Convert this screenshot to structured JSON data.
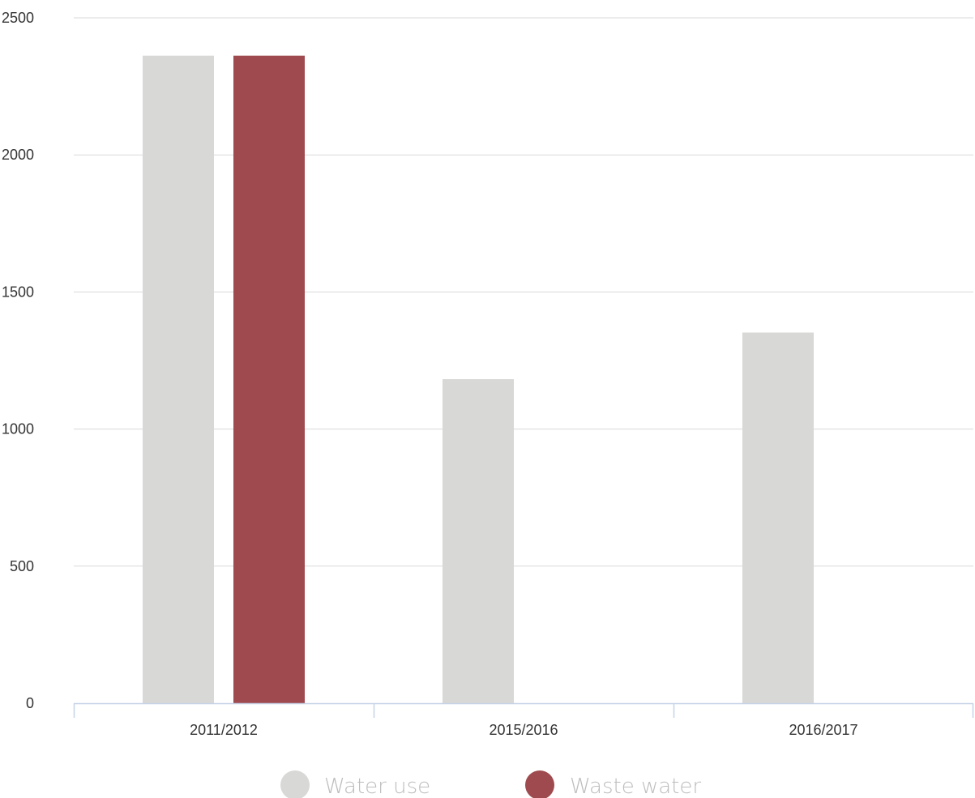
{
  "chart_data": {
    "type": "bar",
    "categories": [
      "2011/2012",
      "2015/2016",
      "2016/2017"
    ],
    "series": [
      {
        "name": "Water use",
        "color": "#d8d8d6",
        "values": [
          2362,
          1182,
          1352
        ]
      },
      {
        "name": "Waste water",
        "color": "#9f4a4f",
        "values": [
          2362,
          null,
          null
        ]
      }
    ],
    "ylim": [
      0,
      2500
    ],
    "yticks": [
      0,
      500,
      1000,
      1500,
      2000,
      2500
    ],
    "grid": true,
    "legend_position": "bottom-center",
    "colors": {
      "grid": "#d9d9d9",
      "axis": "#c6d3e6",
      "tick_text": "#333333",
      "legend_text": "#bdbdbd"
    }
  }
}
